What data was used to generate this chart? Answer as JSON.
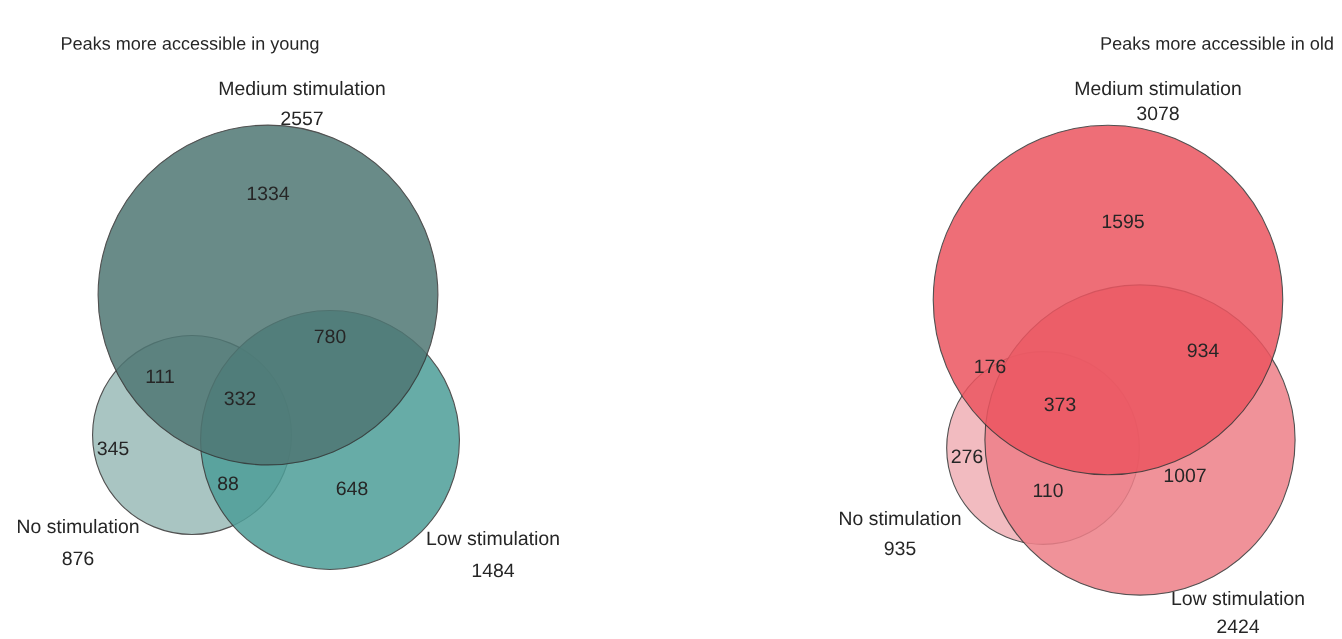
{
  "chart_data": [
    {
      "type": "other",
      "title": "Peaks more accessible in young",
      "categories": [
        "Medium stimulation",
        "Low stimulation",
        "No stimulation"
      ],
      "values": [
        2557,
        1484,
        876
      ],
      "colors": [
        "#4f7774",
        "#4d9e98",
        "#9bbbb8"
      ],
      "data_labels": true,
      "annotations": [
        "1334",
        "780",
        "111",
        "332",
        "345",
        "88",
        "648"
      ]
    },
    {
      "type": "other",
      "title": "Peaks more accessible in old",
      "categories": [
        "Medium stimulation",
        "Low stimulation",
        "No stimulation"
      ],
      "values": [
        3078,
        2424,
        935
      ],
      "colors": [
        "#ec5560",
        "#ee7f88",
        "#f0b0b6"
      ],
      "data_labels": true,
      "annotations": [
        "1595",
        "934",
        "176",
        "373",
        "276",
        "110",
        "1007"
      ]
    }
  ]
}
